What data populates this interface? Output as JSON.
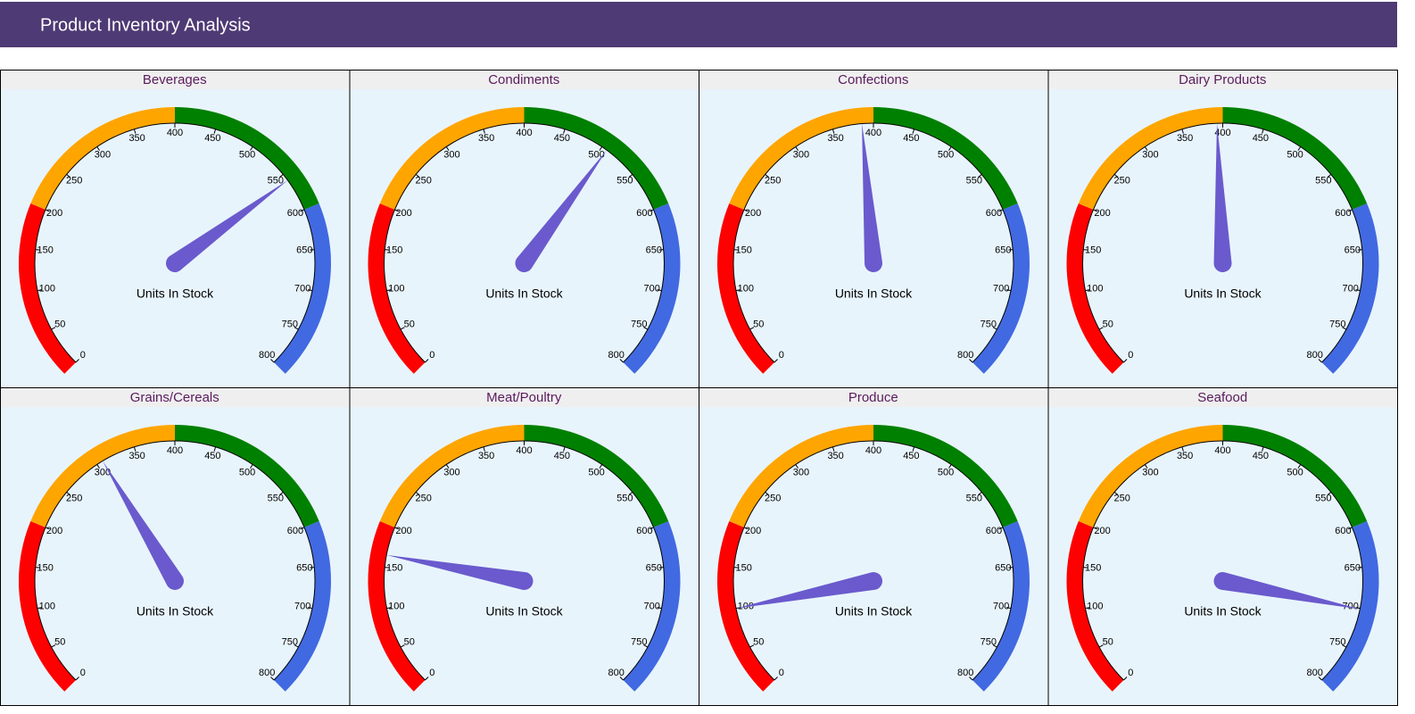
{
  "header": {
    "title": "Product Inventory Analysis"
  },
  "chart_data": [
    {
      "type": "gauge",
      "title": "Beverages",
      "label": "Units In Stock",
      "value": 559,
      "ylim": [
        0,
        800
      ],
      "yticks": [
        0,
        50,
        100,
        150,
        200,
        250,
        300,
        350,
        400,
        450,
        500,
        550,
        600,
        650,
        700,
        750,
        800
      ],
      "bands": [
        {
          "from": 0,
          "to": 200,
          "color": "#ff0000"
        },
        {
          "from": 200,
          "to": 400,
          "color": "#ffa500"
        },
        {
          "from": 400,
          "to": 600,
          "color": "#008000"
        },
        {
          "from": 600,
          "to": 800,
          "color": "#4169e1"
        }
      ],
      "color": "#6a5acd"
    },
    {
      "type": "gauge",
      "title": "Condiments",
      "label": "Units In Stock",
      "value": 507,
      "ylim": [
        0,
        800
      ],
      "yticks": [
        0,
        50,
        100,
        150,
        200,
        250,
        300,
        350,
        400,
        450,
        500,
        550,
        600,
        650,
        700,
        750,
        800
      ],
      "bands": [
        {
          "from": 0,
          "to": 200,
          "color": "#ff0000"
        },
        {
          "from": 200,
          "to": 400,
          "color": "#ffa500"
        },
        {
          "from": 400,
          "to": 600,
          "color": "#008000"
        },
        {
          "from": 600,
          "to": 800,
          "color": "#4169e1"
        }
      ],
      "color": "#6a5acd"
    },
    {
      "type": "gauge",
      "title": "Confections",
      "label": "Units In Stock",
      "value": 386,
      "ylim": [
        0,
        800
      ],
      "yticks": [
        0,
        50,
        100,
        150,
        200,
        250,
        300,
        350,
        400,
        450,
        500,
        550,
        600,
        650,
        700,
        750,
        800
      ],
      "bands": [
        {
          "from": 0,
          "to": 200,
          "color": "#ff0000"
        },
        {
          "from": 200,
          "to": 400,
          "color": "#ffa500"
        },
        {
          "from": 400,
          "to": 600,
          "color": "#008000"
        },
        {
          "from": 600,
          "to": 800,
          "color": "#4169e1"
        }
      ],
      "color": "#6a5acd"
    },
    {
      "type": "gauge",
      "title": "Dairy Products",
      "label": "Units In Stock",
      "value": 393,
      "ylim": [
        0,
        800
      ],
      "yticks": [
        0,
        50,
        100,
        150,
        200,
        250,
        300,
        350,
        400,
        450,
        500,
        550,
        600,
        650,
        700,
        750,
        800
      ],
      "bands": [
        {
          "from": 0,
          "to": 200,
          "color": "#ff0000"
        },
        {
          "from": 200,
          "to": 400,
          "color": "#ffa500"
        },
        {
          "from": 400,
          "to": 600,
          "color": "#008000"
        },
        {
          "from": 600,
          "to": 800,
          "color": "#4169e1"
        }
      ],
      "color": "#6a5acd"
    },
    {
      "type": "gauge",
      "title": "Grains/Cereals",
      "label": "Units In Stock",
      "value": 308,
      "ylim": [
        0,
        800
      ],
      "yticks": [
        0,
        50,
        100,
        150,
        200,
        250,
        300,
        350,
        400,
        450,
        500,
        550,
        600,
        650,
        700,
        750,
        800
      ],
      "bands": [
        {
          "from": 0,
          "to": 200,
          "color": "#ff0000"
        },
        {
          "from": 200,
          "to": 400,
          "color": "#ffa500"
        },
        {
          "from": 400,
          "to": 600,
          "color": "#008000"
        },
        {
          "from": 600,
          "to": 800,
          "color": "#4169e1"
        }
      ],
      "color": "#6a5acd"
    },
    {
      "type": "gauge",
      "title": "Meat/Poultry",
      "label": "Units In Stock",
      "value": 165,
      "ylim": [
        0,
        800
      ],
      "yticks": [
        0,
        50,
        100,
        150,
        200,
        250,
        300,
        350,
        400,
        450,
        500,
        550,
        600,
        650,
        700,
        750,
        800
      ],
      "bands": [
        {
          "from": 0,
          "to": 200,
          "color": "#ff0000"
        },
        {
          "from": 200,
          "to": 400,
          "color": "#ffa500"
        },
        {
          "from": 400,
          "to": 600,
          "color": "#008000"
        },
        {
          "from": 600,
          "to": 800,
          "color": "#4169e1"
        }
      ],
      "color": "#6a5acd"
    },
    {
      "type": "gauge",
      "title": "Produce",
      "label": "Units In Stock",
      "value": 100,
      "ylim": [
        0,
        800
      ],
      "yticks": [
        0,
        50,
        100,
        150,
        200,
        250,
        300,
        350,
        400,
        450,
        500,
        550,
        600,
        650,
        700,
        750,
        800
      ],
      "bands": [
        {
          "from": 0,
          "to": 200,
          "color": "#ff0000"
        },
        {
          "from": 200,
          "to": 400,
          "color": "#ffa500"
        },
        {
          "from": 400,
          "to": 600,
          "color": "#008000"
        },
        {
          "from": 600,
          "to": 800,
          "color": "#4169e1"
        }
      ],
      "color": "#6a5acd"
    },
    {
      "type": "gauge",
      "title": "Seafood",
      "label": "Units In Stock",
      "value": 701,
      "ylim": [
        0,
        800
      ],
      "yticks": [
        0,
        50,
        100,
        150,
        200,
        250,
        300,
        350,
        400,
        450,
        500,
        550,
        600,
        650,
        700,
        750,
        800
      ],
      "bands": [
        {
          "from": 0,
          "to": 200,
          "color": "#ff0000"
        },
        {
          "from": 200,
          "to": 400,
          "color": "#ffa500"
        },
        {
          "from": 400,
          "to": 600,
          "color": "#008000"
        },
        {
          "from": 600,
          "to": 800,
          "color": "#4169e1"
        }
      ],
      "color": "#6a5acd"
    }
  ]
}
